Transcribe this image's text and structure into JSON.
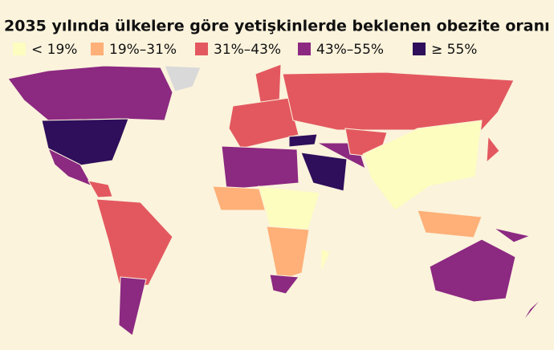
{
  "title": "2035 yılında ülkelere göre yetişkinlerde beklenen obezite oranı",
  "legend": [
    {
      "label": "< 19%",
      "color": "#fcfdbf"
    },
    {
      "label": "19%–31%",
      "color": "#feb078"
    },
    {
      "label": "31%–43%",
      "color": "#e3585f"
    },
    {
      "label": "43%–55%",
      "color": "#8c2981"
    },
    {
      "label": "≥ 55%",
      "color": "#2f0e5b"
    }
  ]
}
